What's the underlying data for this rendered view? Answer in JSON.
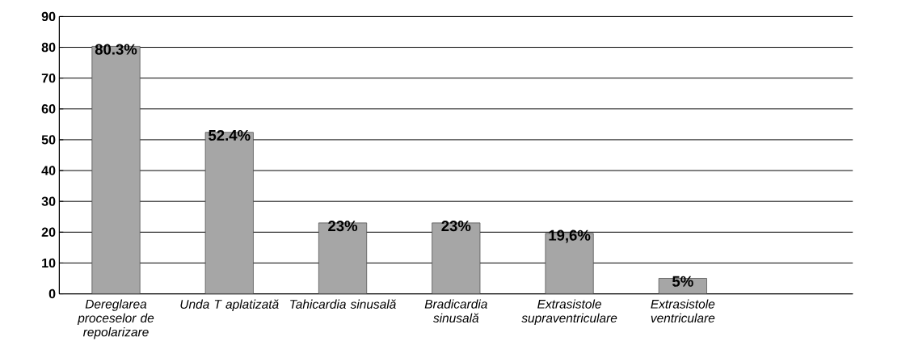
{
  "chart_data": {
    "type": "bar",
    "categories": [
      "Dereglarea proceselor de repolarizare",
      "Unda T aplatizată",
      "Tahicardia sinusală",
      "Bradicardia sinusală",
      "Extrasistole supraventriculare",
      "Extrasistole ventriculare",
      null
    ],
    "values": [
      80.3,
      52.4,
      23,
      23,
      19.6,
      5,
      null
    ],
    "value_labels": [
      "80.3%",
      "52.4%",
      "23%",
      "23%",
      "19,6%",
      "5%",
      null
    ],
    "color": "#a6a6a6",
    "ylim": [
      0,
      90
    ],
    "yticks": [
      0,
      10,
      20,
      30,
      40,
      50,
      60,
      70,
      80,
      90
    ],
    "grid": "y"
  }
}
